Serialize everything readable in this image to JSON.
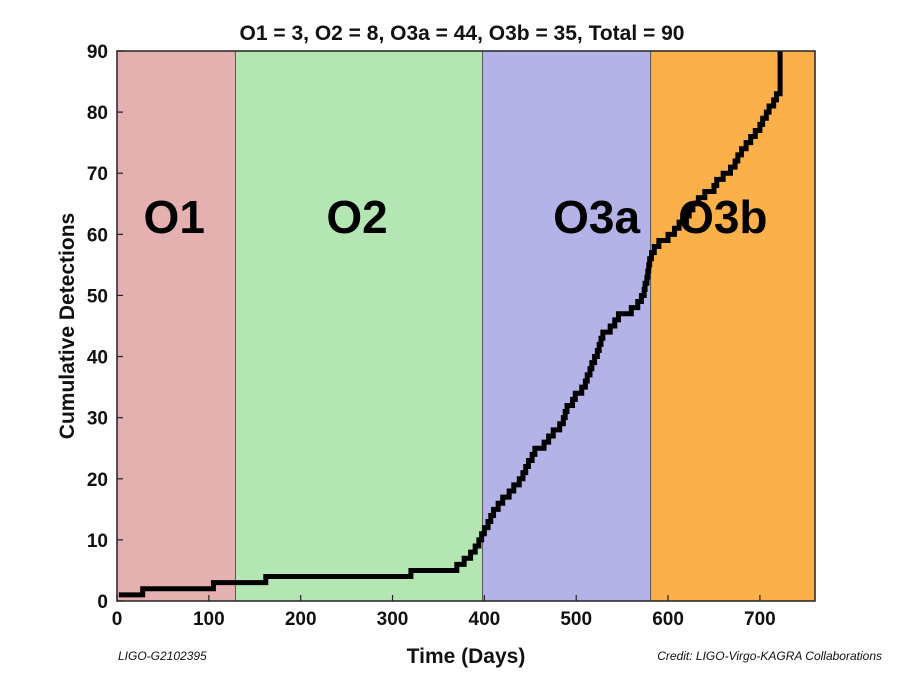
{
  "chart_data": {
    "type": "line",
    "title": "O1 = 3, O2 = 8, O3a = 44, O3b = 35, Total = 90",
    "xlabel": "Time (Days)",
    "ylabel": "Cumulative Detections",
    "xlim": [
      0,
      760
    ],
    "ylim": [
      0,
      90
    ],
    "xticks": [
      0,
      100,
      200,
      300,
      400,
      500,
      600,
      700
    ],
    "yticks": [
      0,
      10,
      20,
      30,
      40,
      50,
      60,
      70,
      80,
      90
    ],
    "step": true,
    "grid": false,
    "regions": [
      {
        "label": "O1",
        "x_start": 0,
        "x_end": 129,
        "color": "#e4b0b0"
      },
      {
        "label": "O2",
        "x_start": 129,
        "x_end": 398,
        "color": "#b4e6b4"
      },
      {
        "label": "O3a",
        "x_start": 398,
        "x_end": 581,
        "color": "#b3b3e8"
      },
      {
        "label": "O3b",
        "x_start": 581,
        "x_end": 760,
        "color": "#fcb04a"
      }
    ],
    "series": [
      {
        "color": "#000000",
        "x": [
          2,
          28,
          105,
          162,
          320,
          370,
          378,
          385,
          390,
          394,
          397,
          400,
          404,
          407,
          410,
          415,
          420,
          427,
          432,
          438,
          442,
          445,
          448,
          452,
          455,
          465,
          470,
          475,
          482,
          486,
          488,
          490,
          496,
          499,
          506,
          510,
          512,
          515,
          517,
          520,
          523,
          525,
          527,
          529,
          537,
          542,
          546,
          560,
          567,
          571,
          574,
          575,
          577,
          578,
          579,
          580,
          582,
          585,
          590,
          600,
          607,
          612,
          620,
          623,
          627,
          633,
          640,
          650,
          653,
          660,
          668,
          673,
          676,
          680,
          685,
          690,
          695,
          700,
          703,
          707,
          710,
          715,
          718,
          722
        ],
        "y": [
          1,
          2,
          3,
          4,
          5,
          6,
          7,
          8,
          9,
          10,
          11,
          12,
          13,
          14,
          15,
          16,
          17,
          18,
          19,
          20,
          21,
          22,
          23,
          24,
          25,
          26,
          27,
          28,
          29,
          30,
          31,
          32,
          33,
          34,
          35,
          36,
          37,
          38,
          39,
          40,
          41,
          42,
          43,
          44,
          45,
          46,
          47,
          48,
          49,
          50,
          51,
          52,
          53,
          54,
          55,
          56,
          57,
          58,
          59,
          60,
          61,
          62,
          63,
          64,
          65,
          66,
          67,
          68,
          69,
          70,
          71,
          72,
          73,
          74,
          75,
          76,
          77,
          78,
          79,
          80,
          81,
          82,
          83,
          84
        ],
        "x_end": 722,
        "y_end": 90
      }
    ],
    "footnotes": {
      "left": "LIGO-G2102395",
      "right": "Credit: LIGO-Virgo-KAGRA Collaborations"
    }
  }
}
